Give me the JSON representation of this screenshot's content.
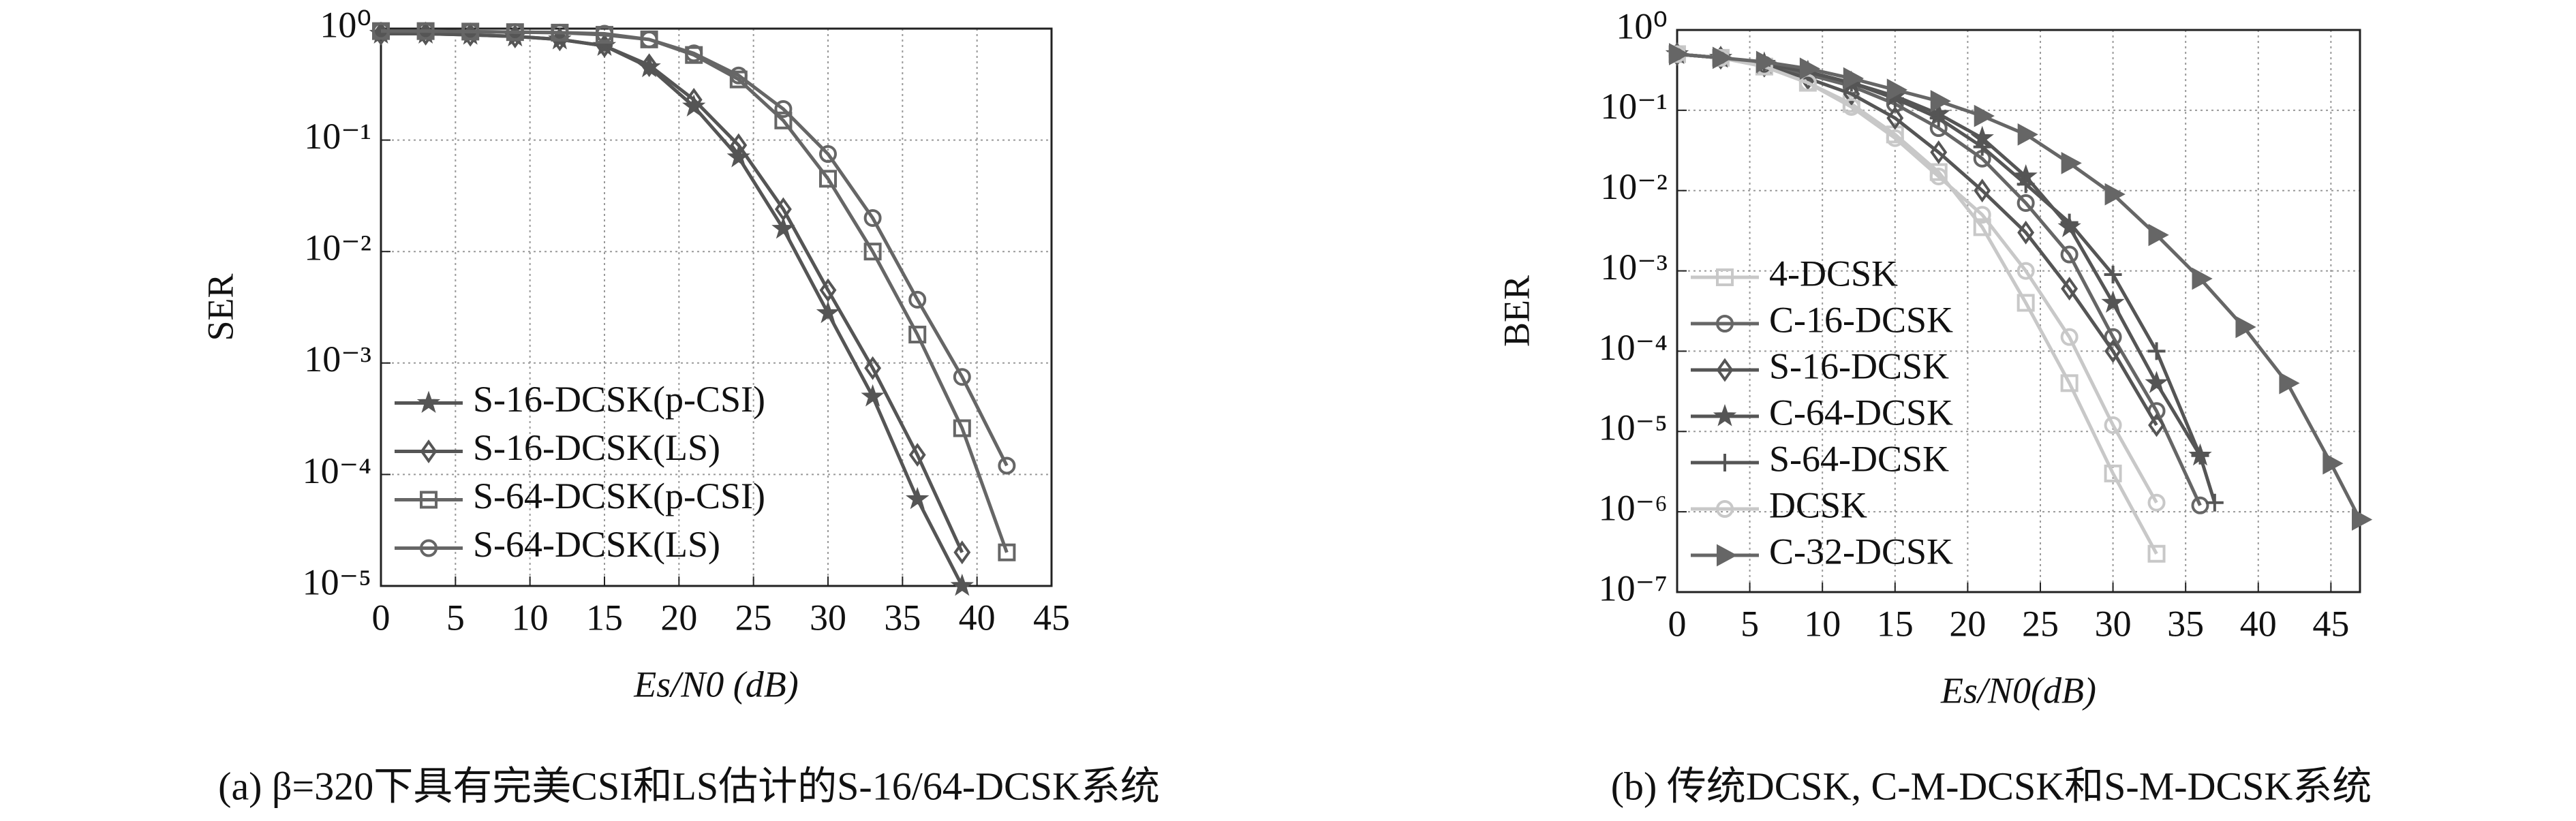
{
  "chart_data": [
    {
      "type": "line",
      "log_y": true,
      "grid": true,
      "legend": "lower left",
      "x_label": "Es/N0 (dB)",
      "y_label": "SER",
      "caption": "(a) β=320下具有完美CSI和LS估计的S-16/64-DCSK系统",
      "xlim": [
        0,
        45
      ],
      "xticks": [
        0,
        5,
        10,
        15,
        20,
        25,
        30,
        35,
        40,
        45
      ],
      "ylim": [
        1e-05,
        1
      ],
      "yticks": [
        {
          "value": 1,
          "label": "10⁰"
        },
        {
          "value": 0.1,
          "label": "10⁻¹"
        },
        {
          "value": 0.01,
          "label": "10⁻²"
        },
        {
          "value": 0.001,
          "label": "10⁻³"
        },
        {
          "value": 0.0001,
          "label": "10⁻⁴"
        },
        {
          "value": 1e-05,
          "label": "10⁻⁵"
        }
      ],
      "series": [
        {
          "name": "S-16-DCSK(p-CSI)",
          "color": "#555555",
          "marker": "star",
          "x": [
            0,
            3,
            6,
            9,
            12,
            15,
            18,
            21,
            24,
            27,
            30,
            33,
            36,
            39
          ],
          "values": [
            0.9,
            0.9,
            0.88,
            0.85,
            0.8,
            0.7,
            0.45,
            0.2,
            0.07,
            0.016,
            0.0028,
            0.0005,
            6e-05,
            1e-05
          ]
        },
        {
          "name": "S-16-DCSK(LS)",
          "color": "#555555",
          "marker": "diamond",
          "x": [
            0,
            3,
            6,
            9,
            12,
            15,
            18,
            21,
            24,
            27,
            30,
            33,
            36,
            39
          ],
          "values": [
            0.9,
            0.9,
            0.88,
            0.85,
            0.8,
            0.7,
            0.47,
            0.23,
            0.09,
            0.024,
            0.0045,
            0.0009,
            0.00015,
            2e-05
          ]
        },
        {
          "name": "S-64-DCSK(p-CSI)",
          "color": "#666666",
          "marker": "square",
          "x": [
            0,
            3,
            6,
            9,
            12,
            15,
            18,
            21,
            24,
            27,
            30,
            33,
            36,
            39,
            42
          ],
          "values": [
            0.95,
            0.95,
            0.94,
            0.93,
            0.92,
            0.88,
            0.8,
            0.58,
            0.35,
            0.15,
            0.045,
            0.01,
            0.0018,
            0.00026,
            2e-05
          ]
        },
        {
          "name": "S-64-DCSK(LS)",
          "color": "#666666",
          "marker": "circle",
          "x": [
            0,
            3,
            6,
            9,
            12,
            15,
            18,
            21,
            24,
            27,
            30,
            33,
            36,
            39,
            42
          ],
          "values": [
            0.95,
            0.95,
            0.94,
            0.93,
            0.92,
            0.9,
            0.8,
            0.6,
            0.38,
            0.19,
            0.075,
            0.02,
            0.0037,
            0.00075,
            0.00012
          ]
        }
      ]
    },
    {
      "type": "line",
      "log_y": true,
      "grid": true,
      "legend": "lower left",
      "x_label": "Es/N0(dB)",
      "y_label": "BER",
      "caption": "(b) 传统DCSK, C-M-DCSK和S-M-DCSK系统",
      "xlim": [
        0,
        47
      ],
      "xticks": [
        0,
        5,
        10,
        15,
        20,
        25,
        30,
        35,
        40,
        45
      ],
      "ylim": [
        1e-07,
        1
      ],
      "yticks": [
        {
          "value": 1,
          "label": "10⁰"
        },
        {
          "value": 0.1,
          "label": "10⁻¹"
        },
        {
          "value": 0.01,
          "label": "10⁻²"
        },
        {
          "value": 0.001,
          "label": "10⁻³"
        },
        {
          "value": 0.0001,
          "label": "10⁻⁴"
        },
        {
          "value": 1e-05,
          "label": "10⁻⁵"
        },
        {
          "value": 1e-06,
          "label": "10⁻⁶"
        },
        {
          "value": 1e-07,
          "label": "10⁻⁷"
        }
      ],
      "series": [
        {
          "name": "4-DCSK",
          "color": "#c8c8c8",
          "marker": "square",
          "x": [
            0,
            3,
            6,
            9,
            12,
            15,
            18,
            21,
            24,
            27,
            30,
            33
          ],
          "values": [
            0.5,
            0.45,
            0.35,
            0.22,
            0.12,
            0.05,
            0.017,
            0.0035,
            0.0004,
            4e-05,
            3e-06,
            3e-07
          ]
        },
        {
          "name": "C-16-DCSK",
          "color": "#666666",
          "marker": "circle",
          "x": [
            0,
            3,
            6,
            9,
            12,
            15,
            18,
            21,
            24,
            27,
            30,
            33,
            36
          ],
          "values": [
            0.5,
            0.45,
            0.37,
            0.28,
            0.2,
            0.12,
            0.06,
            0.025,
            0.007,
            0.0016,
            0.00015,
            1.8e-05,
            1.2e-06
          ]
        },
        {
          "name": "S-16-DCSK",
          "color": "#555555",
          "marker": "diamond",
          "x": [
            0,
            3,
            6,
            9,
            12,
            15,
            18,
            21,
            24,
            27,
            30,
            33
          ],
          "values": [
            0.5,
            0.45,
            0.36,
            0.25,
            0.16,
            0.08,
            0.03,
            0.01,
            0.003,
            0.0006,
            0.0001,
            1.2e-05
          ]
        },
        {
          "name": "C-64-DCSK",
          "color": "#555555",
          "marker": "star",
          "x": [
            0,
            3,
            6,
            9,
            12,
            15,
            18,
            21,
            24,
            27,
            30,
            33,
            36
          ],
          "values": [
            0.5,
            0.45,
            0.38,
            0.3,
            0.22,
            0.15,
            0.09,
            0.045,
            0.015,
            0.0035,
            0.0004,
            4e-05,
            5e-06
          ]
        },
        {
          "name": "S-64-DCSK",
          "color": "#555555",
          "marker": "plus",
          "x": [
            0,
            3,
            6,
            9,
            12,
            15,
            18,
            21,
            24,
            27,
            30,
            33,
            36,
            37
          ],
          "values": [
            0.5,
            0.45,
            0.38,
            0.3,
            0.22,
            0.14,
            0.08,
            0.035,
            0.012,
            0.004,
            0.0009,
            0.0001,
            5e-06,
            1.3e-06
          ]
        },
        {
          "name": "DCSK",
          "color": "#c8c8c8",
          "marker": "circle",
          "x": [
            0,
            3,
            6,
            9,
            12,
            15,
            18,
            21,
            24,
            27,
            30,
            33
          ],
          "values": [
            0.5,
            0.45,
            0.35,
            0.22,
            0.11,
            0.045,
            0.015,
            0.005,
            0.001,
            0.00015,
            1.2e-05,
            1.3e-06
          ]
        },
        {
          "name": "C-32-DCSK",
          "color": "#666666",
          "marker": "triangle",
          "x": [
            0,
            3,
            6,
            9,
            12,
            15,
            18,
            21,
            24,
            27,
            30,
            33,
            36,
            39,
            42,
            45,
            47
          ],
          "values": [
            0.5,
            0.45,
            0.4,
            0.33,
            0.25,
            0.18,
            0.13,
            0.085,
            0.05,
            0.022,
            0.009,
            0.0028,
            0.0008,
            0.0002,
            4e-05,
            4e-06,
            8e-07
          ]
        }
      ]
    }
  ]
}
